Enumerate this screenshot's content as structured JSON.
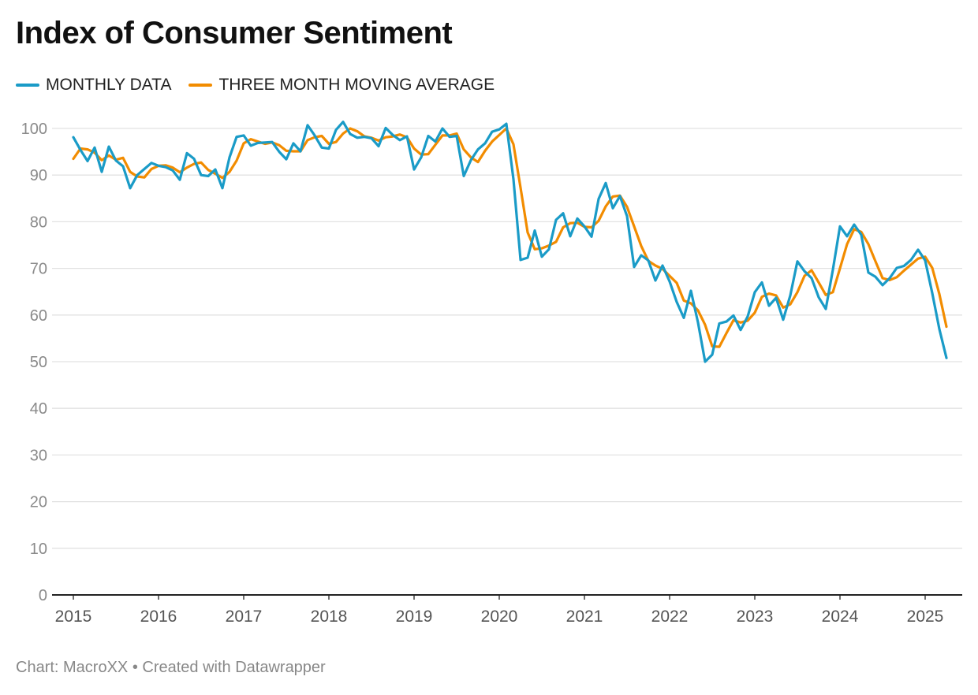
{
  "chart_data": {
    "type": "line",
    "title": "Index of Consumer Sentiment",
    "start": "2015-01",
    "frequency": "monthly",
    "x_tick_labels": [
      "2015",
      "2016",
      "2017",
      "2018",
      "2019",
      "2020",
      "2021",
      "2022",
      "2023",
      "2024",
      "2025"
    ],
    "y_tick_labels": [
      "0",
      "10",
      "20",
      "30",
      "40",
      "50",
      "60",
      "70",
      "80",
      "90",
      "100"
    ],
    "ylim": [
      0,
      100
    ],
    "grid": true,
    "legend_placement": "top-left",
    "series": [
      {
        "name": "MONTHLY DATA",
        "color": "#1a9bc7",
        "values": [
          98.1,
          95.4,
          93.0,
          95.9,
          90.7,
          96.1,
          93.1,
          91.9,
          87.2,
          90.0,
          91.3,
          92.6,
          92.0,
          91.7,
          91.0,
          89.0,
          94.7,
          93.5,
          90.0,
          89.8,
          91.2,
          87.2,
          93.8,
          98.2,
          98.5,
          96.3,
          96.9,
          97.0,
          97.1,
          95.0,
          93.4,
          96.8,
          95.1,
          100.7,
          98.5,
          95.9,
          95.7,
          99.7,
          101.4,
          98.8,
          98.0,
          98.2,
          97.9,
          96.2,
          100.1,
          98.6,
          97.5,
          98.3,
          91.2,
          93.8,
          98.4,
          97.2,
          100.0,
          98.2,
          98.4,
          89.8,
          93.2,
          95.5,
          96.8,
          99.3,
          99.8,
          101.0,
          89.1,
          71.8,
          72.3,
          78.1,
          72.5,
          74.1,
          80.4,
          81.8,
          76.9,
          80.7,
          79.0,
          76.8,
          84.9,
          88.3,
          82.9,
          85.5,
          81.2,
          70.3,
          72.8,
          71.7,
          67.4,
          70.6,
          67.2,
          62.8,
          59.4,
          65.2,
          58.4,
          50.0,
          51.5,
          58.2,
          58.6,
          59.9,
          56.8,
          59.7,
          64.9,
          67.0,
          62.0,
          63.7,
          59.0,
          64.2,
          71.5,
          69.4,
          67.9,
          63.8,
          61.3,
          69.7,
          79.0,
          76.9,
          79.4,
          77.2,
          69.1,
          68.2,
          66.4,
          67.9,
          70.1,
          70.5,
          71.8,
          74.0,
          71.7,
          64.7,
          57.0,
          50.8
        ]
      },
      {
        "name": "THREE MONTH MOVING AVERAGE",
        "color": "#f28c00",
        "values": [
          93.5,
          95.7,
          95.5,
          94.8,
          93.2,
          94.2,
          93.3,
          93.7,
          90.7,
          89.7,
          89.5,
          91.3,
          92.0,
          92.1,
          91.6,
          90.6,
          91.6,
          92.4,
          92.7,
          91.1,
          90.3,
          89.4,
          90.7,
          93.1,
          96.8,
          97.7,
          97.2,
          96.7,
          97.0,
          96.4,
          95.2,
          95.1,
          95.1,
          97.5,
          98.1,
          98.4,
          96.7,
          97.1,
          98.9,
          100.0,
          99.4,
          98.3,
          98.0,
          97.4,
          98.1,
          98.3,
          98.7,
          98.1,
          95.7,
          94.4,
          94.5,
          96.5,
          98.5,
          98.5,
          98.9,
          95.5,
          93.8,
          92.8,
          95.2,
          97.2,
          98.6,
          100.0,
          96.6,
          87.3,
          77.7,
          74.1,
          74.3,
          74.9,
          75.7,
          78.8,
          79.7,
          79.8,
          78.9,
          78.8,
          80.2,
          83.3,
          85.4,
          85.6,
          83.2,
          79.0,
          74.8,
          71.6,
          70.6,
          69.9,
          68.4,
          66.9,
          63.1,
          62.5,
          61.0,
          57.9,
          53.3,
          53.2,
          56.1,
          58.9,
          58.4,
          58.8,
          60.5,
          63.9,
          64.6,
          64.2,
          61.6,
          62.3,
          64.9,
          68.4,
          69.6,
          67.0,
          64.3,
          64.9,
          70.0,
          75.2,
          78.4,
          77.8,
          75.2,
          71.5,
          67.9,
          67.5,
          68.1,
          69.5,
          70.8,
          72.1,
          72.5,
          70.1,
          64.5,
          57.5
        ]
      }
    ]
  },
  "footer": "Chart: MacroXX • Created with Datawrapper"
}
